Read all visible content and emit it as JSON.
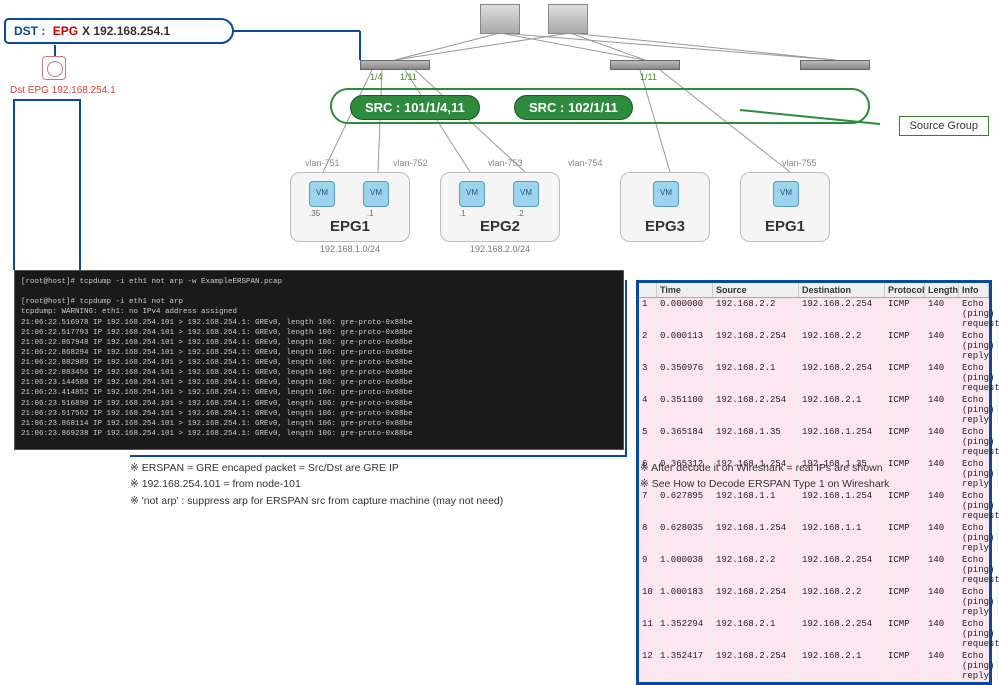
{
  "dst": {
    "label_dst": "DST :",
    "label_epg": "EPG",
    "label_x": "X",
    "ip": "192.168.254.1",
    "sub": "Dst EPG 192.168.254.1"
  },
  "src": {
    "pill1": "SRC : 101/1/4,11",
    "pill2": "SRC : 102/1/11",
    "group_label": "Source Group"
  },
  "ports": {
    "p1": "1/4",
    "p2": "1/11",
    "p3": "1/11"
  },
  "vlans": {
    "v1": "vlan-751",
    "v2": "vlan-752",
    "v3": "vlan-753",
    "v4": "vlan-754",
    "v5": "vlan-755"
  },
  "epgs": {
    "e1": "EPG1",
    "e2": "EPG2",
    "e3": "EPG3",
    "e4": "EPG1"
  },
  "vmips": {
    "a": ".35",
    "b": ".1",
    "c": ".1",
    "d": ".2",
    "e": "",
    "f": ""
  },
  "subnets": {
    "s1": "192.168.1.0/24",
    "s2": "192.168.2.0/24"
  },
  "terminal": "[root@host]# tcpdump -i eth1 not arp -w ExampleERSPAN.pcap\n\n[root@host]# tcpdump -i eth1 not arp\ntcpdump: WARNING: eth1: no IPv4 address assigned\n21:06:22.516978 IP 192.168.254.101 > 192.168.254.1: GREv0, length 106: gre-proto-0x88be\n21:06:22.517793 IP 192.168.254.101 > 192.168.254.1: GREv0, length 106: gre-proto-0x88be\n21:06:22.867948 IP 192.168.254.101 > 192.168.254.1: GREv0, length 106: gre-proto-0x88be\n21:06:22.868294 IP 192.168.254.101 > 192.168.254.1: GREv0, length 106: gre-proto-0x88be\n21:06:22.882989 IP 192.168.254.101 > 192.168.254.1: GREv0, length 106: gre-proto-0x88be\n21:06:22.883456 IP 192.168.254.101 > 192.168.254.1: GREv0, length 106: gre-proto-0x88be\n21:06:23.144588 IP 192.168.254.101 > 192.168.254.1: GREv0, length 106: gre-proto-0x88be\n21:06:23.414852 IP 192.168.254.101 > 192.168.254.1: GREv0, length 106: gre-proto-0x88be\n21:06:23.516890 IP 192.168.254.101 > 192.168.254.1: GREv0, length 106: gre-proto-0x88be\n21:06:23.517562 IP 192.168.254.101 > 192.168.254.1: GREv0, length 106: gre-proto-0x88be\n21:06:23.868114 IP 192.168.254.101 > 192.168.254.1: GREv0, length 106: gre-proto-0x88be\n21:06:23.869238 IP 192.168.254.101 > 192.168.254.1: GREv0, length 106: gre-proto-0x88be",
  "ws": {
    "cols": {
      "n": "",
      "time": "Time",
      "src": "Source",
      "dst": "Destination",
      "proto": "Protocol",
      "len": "Length",
      "info": "Info"
    },
    "rows": [
      {
        "n": "1",
        "t": "0.000000",
        "s": "192.168.2.2",
        "d": "192.168.2.254",
        "p": "ICMP",
        "l": "140",
        "i": "Echo (ping) request"
      },
      {
        "n": "2",
        "t": "0.000113",
        "s": "192.168.2.254",
        "d": "192.168.2.2",
        "p": "ICMP",
        "l": "140",
        "i": "Echo (ping) reply"
      },
      {
        "n": "3",
        "t": "0.350976",
        "s": "192.168.2.1",
        "d": "192.168.2.254",
        "p": "ICMP",
        "l": "140",
        "i": "Echo (ping) request"
      },
      {
        "n": "4",
        "t": "0.351100",
        "s": "192.168.2.254",
        "d": "192.168.2.1",
        "p": "ICMP",
        "l": "140",
        "i": "Echo (ping) reply"
      },
      {
        "n": "5",
        "t": "0.365184",
        "s": "192.168.1.35",
        "d": "192.168.1.254",
        "p": "ICMP",
        "l": "140",
        "i": "Echo (ping) request"
      },
      {
        "n": "6",
        "t": "0.365312",
        "s": "192.168.1.254",
        "d": "192.168.1.35",
        "p": "ICMP",
        "l": "140",
        "i": "Echo (ping) reply"
      },
      {
        "n": "7",
        "t": "0.627895",
        "s": "192.168.1.1",
        "d": "192.168.1.254",
        "p": "ICMP",
        "l": "140",
        "i": "Echo (ping) request"
      },
      {
        "n": "8",
        "t": "0.628035",
        "s": "192.168.1.254",
        "d": "192.168.1.1",
        "p": "ICMP",
        "l": "140",
        "i": "Echo (ping) reply"
      },
      {
        "n": "9",
        "t": "1.000038",
        "s": "192.168.2.2",
        "d": "192.168.2.254",
        "p": "ICMP",
        "l": "140",
        "i": "Echo (ping) request"
      },
      {
        "n": "10",
        "t": "1.000183",
        "s": "192.168.2.254",
        "d": "192.168.2.2",
        "p": "ICMP",
        "l": "140",
        "i": "Echo (ping) reply"
      },
      {
        "n": "11",
        "t": "1.352294",
        "s": "192.168.2.1",
        "d": "192.168.2.254",
        "p": "ICMP",
        "l": "140",
        "i": "Echo (ping) request"
      },
      {
        "n": "12",
        "t": "1.352417",
        "s": "192.168.2.254",
        "d": "192.168.2.1",
        "p": "ICMP",
        "l": "140",
        "i": "Echo (ping) reply"
      }
    ]
  },
  "notes": {
    "n1": "※ ERSPAN = GRE encaped packet = Src/Dst are GRE IP",
    "n2": "※ 192.168.254.101 = from node-101",
    "n3": "※ 'not arp' : suppress arp for ERSPAN src from capture machine (may not need)",
    "n4": "※ After decode it on Wireshark = real IPs are shown",
    "n5": "※ See How to Decode ERSPAN Type 1 on Wireshark"
  }
}
